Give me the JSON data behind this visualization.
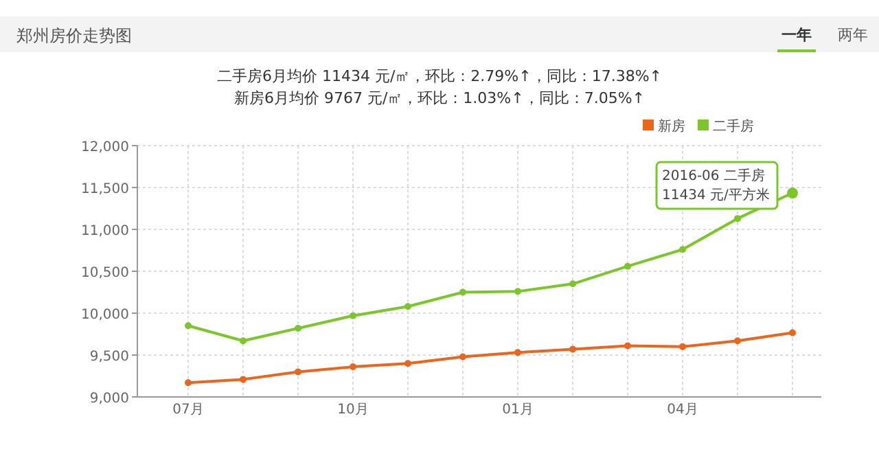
{
  "chart_data": {
    "type": "line",
    "title": "郑州房价走势图",
    "subtitle": "二手房6月均价 11434 元/㎡，环比：2.79%↑，同比：17.38%↑\n新房6月均价 9767 元/㎡，环比：1.03%↑，同比：7.05%↑",
    "annotations": [
      "一年",
      "两年",
      "2016-06 二手房\n11434 元/平方米"
    ],
    "categories": [
      "07月",
      null,
      null,
      "10月",
      null,
      null,
      "01月",
      null,
      null,
      "04月",
      null,
      null
    ],
    "series": [
      {
        "name": "新房",
        "color": "#e8661e",
        "values": [
          9170,
          9210,
          9300,
          9360,
          9400,
          9480,
          9530,
          9570,
          9610,
          9600,
          9670,
          9767
        ]
      },
      {
        "name": "二手房",
        "color": "#7cc62c",
        "values": [
          9850,
          9670,
          9820,
          9970,
          10080,
          10250,
          10260,
          10350,
          10560,
          10760,
          11130,
          11434
        ]
      }
    ],
    "ylim": [
      9000,
      12000
    ],
    "yticks": [
      {
        "value": 9000,
        "label": "9,000"
      },
      {
        "value": 9500,
        "label": "9,500"
      },
      {
        "value": 10000,
        "label": "10,000"
      },
      {
        "value": 10500,
        "label": "10,500"
      },
      {
        "value": 11000,
        "label": "11,000"
      },
      {
        "value": 11500,
        "label": "11,500"
      },
      {
        "value": 12000,
        "label": "12,000"
      }
    ],
    "grid": true,
    "legend": "top right",
    "marker": "circle",
    "line_style": "solid"
  }
}
